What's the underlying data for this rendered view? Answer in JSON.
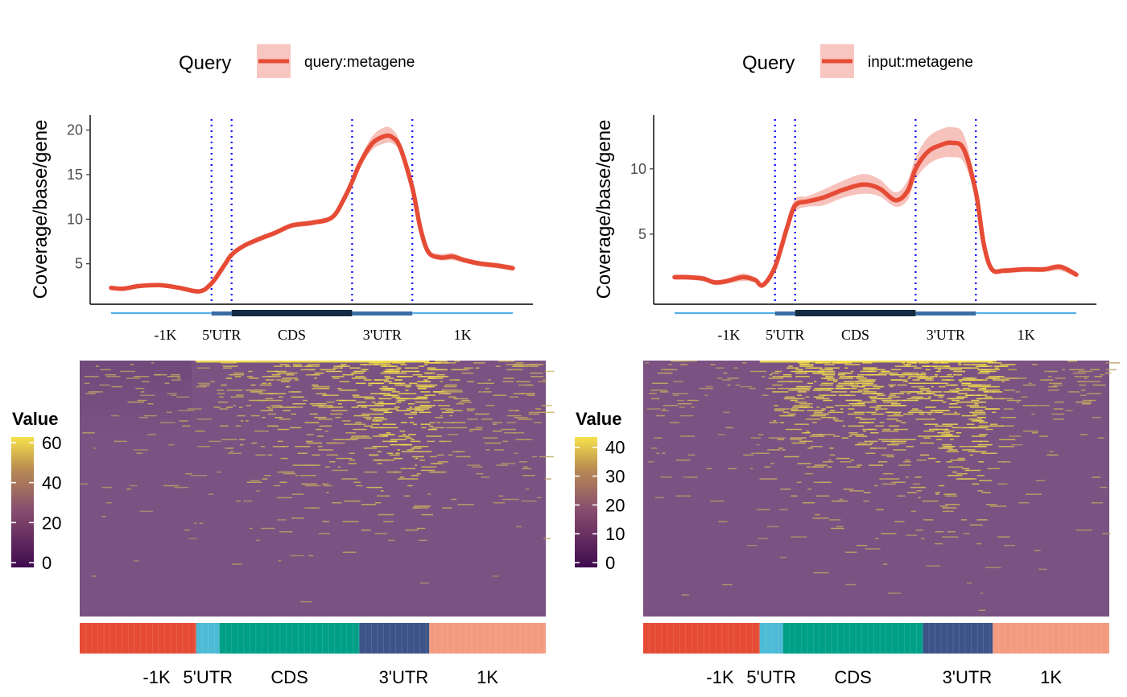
{
  "chart_data": [
    {
      "type": "line",
      "legend": {
        "title": "Query",
        "label": "query:metagene"
      },
      "ylabel": "Coverage/base/gene",
      "yticks": [
        5,
        10,
        15,
        20
      ],
      "ylim": [
        1,
        21.5
      ],
      "xlim": [
        0,
        100
      ],
      "regions": [
        "-1K",
        "5'UTR",
        "CDS",
        "3'UTR",
        "1K"
      ],
      "boundaries": [
        25,
        30,
        60,
        75
      ],
      "series": [
        {
          "x": [
            0,
            3,
            7,
            12,
            17,
            22,
            25,
            28,
            30,
            33,
            37,
            41,
            45,
            50,
            55,
            58,
            60,
            62,
            65,
            68,
            70,
            72,
            75,
            77,
            79,
            82,
            85,
            88,
            92,
            96,
            100
          ],
          "y": [
            2.3,
            2.2,
            2.5,
            2.6,
            2.3,
            1.9,
            2.8,
            4.7,
            6.0,
            7.0,
            7.8,
            8.5,
            9.3,
            9.6,
            10.2,
            12.3,
            14.2,
            16.3,
            18.5,
            19.3,
            19.2,
            18.0,
            13.5,
            9.0,
            6.3,
            5.7,
            5.8,
            5.4,
            5.0,
            4.8,
            4.5
          ],
          "lower": [
            2.1,
            2.0,
            2.3,
            2.4,
            2.1,
            1.7,
            2.6,
            4.5,
            5.8,
            6.8,
            7.5,
            8.2,
            9.0,
            9.3,
            9.9,
            12.0,
            13.9,
            15.9,
            17.8,
            18.5,
            18.5,
            17.4,
            13.0,
            8.6,
            6.0,
            5.4,
            5.4,
            5.1,
            4.7,
            4.5,
            4.2
          ],
          "upper": [
            2.5,
            2.4,
            2.7,
            2.8,
            2.5,
            2.1,
            3.0,
            4.9,
            6.2,
            7.2,
            8.1,
            8.8,
            9.6,
            9.9,
            10.5,
            12.6,
            14.5,
            16.8,
            19.3,
            20.3,
            20.1,
            18.6,
            14.0,
            9.4,
            6.6,
            6.1,
            6.2,
            5.7,
            5.3,
            5.1,
            4.8
          ]
        }
      ],
      "colorbar": {
        "title": "Value",
        "ticks": [
          0,
          20,
          40,
          60
        ],
        "max": 62
      }
    },
    {
      "type": "line",
      "legend": {
        "title": "Query",
        "label": "input:metagene"
      },
      "ylabel": "Coverage/base/gene",
      "yticks": [
        5,
        10
      ],
      "ylim": [
        0,
        14
      ],
      "xlim": [
        0,
        100
      ],
      "regions": [
        "-1K",
        "5'UTR",
        "CDS",
        "3'UTR",
        "1K"
      ],
      "boundaries": [
        25,
        30,
        60,
        75
      ],
      "series": [
        {
          "x": [
            0,
            3,
            7,
            10,
            13,
            17,
            20,
            22,
            25,
            28,
            30,
            33,
            37,
            42,
            47,
            51,
            55,
            58,
            60,
            63,
            66,
            69,
            72,
            75,
            77,
            79,
            82,
            87,
            92,
            96,
            100
          ],
          "y": [
            1.7,
            1.7,
            1.6,
            1.3,
            1.4,
            1.7,
            1.5,
            1.1,
            2.5,
            5.5,
            7.2,
            7.5,
            7.8,
            8.4,
            8.8,
            8.5,
            7.6,
            8.3,
            10.0,
            11.3,
            11.8,
            12.0,
            11.5,
            8.2,
            4.2,
            2.3,
            2.2,
            2.3,
            2.3,
            2.5,
            1.9
          ],
          "lower": [
            1.5,
            1.5,
            1.4,
            1.1,
            1.2,
            1.4,
            1.3,
            0.9,
            2.2,
            5.1,
            6.7,
            7.1,
            7.2,
            7.8,
            8.1,
            7.9,
            7.1,
            7.6,
            9.2,
            10.3,
            10.8,
            10.9,
            10.5,
            7.6,
            3.9,
            2.1,
            2.0,
            2.1,
            2.1,
            2.2,
            1.7
          ],
          "upper": [
            1.9,
            1.9,
            1.8,
            1.5,
            1.6,
            2.0,
            1.7,
            1.3,
            2.8,
            5.9,
            7.7,
            7.9,
            8.4,
            9.1,
            9.6,
            9.2,
            8.2,
            9.1,
            10.9,
            12.4,
            13.0,
            13.2,
            12.6,
            8.8,
            4.5,
            2.5,
            2.4,
            2.5,
            2.5,
            2.7,
            2.1
          ]
        }
      ],
      "colorbar": {
        "title": "Value",
        "ticks": [
          0,
          10,
          20,
          30,
          40
        ],
        "max": 43
      }
    }
  ],
  "colors": {
    "line": "#E64B35",
    "ribbon": "#F4A8A0",
    "boundary": "#0000FF",
    "track_flank": "#56B1E8",
    "track_utr": "#3A6EA5",
    "track_cds": "#132B43",
    "heatmap_low": "#3F0B4F",
    "heatmap_bg": "#7A5382",
    "heatmap_high": "#F6E24A",
    "bar_flank_up": "#E64B35",
    "bar_utr5": "#4DBBD5",
    "bar_cds": "#00A087",
    "bar_utr3": "#3C5488",
    "bar_flank_down": "#F39B7F"
  }
}
